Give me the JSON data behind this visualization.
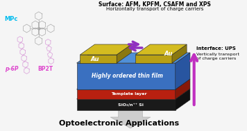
{
  "title": "Optoelectronic Applications",
  "surface_text": "Surface: AFM, KPFM, CSAFM and XPS",
  "horizontal_text": "Horizontally transport of charge carriers",
  "interface_text": "Interface: UPS",
  "vertical_text": "Vertically transport\nof charge carriers",
  "layer_labels": [
    "Highly ordered thin film",
    "Template layer",
    "SiO₂/n⁺⁺ Si"
  ],
  "au_label": "Au",
  "mpc_label": "MPc",
  "p6p_label": "p-6P",
  "bp2t_label": "BP2T",
  "bg_color": "#f5f5f5",
  "au_face": "#b8a015",
  "au_top": "#d4bc20",
  "au_side": "#8a7810",
  "blue_face": "#3a70c0",
  "blue_top": "#5090d8",
  "blue_side": "#2855a0",
  "red_face": "#b82010",
  "red_top": "#cc3020",
  "red_side": "#881808",
  "black_face": "#1a1a1a",
  "black_top": "#333333",
  "black_side": "#111111",
  "arrow_h_color": "#9030c0",
  "arrow_v_color": "#c030c0",
  "down_arrow_color": "#cccccc"
}
